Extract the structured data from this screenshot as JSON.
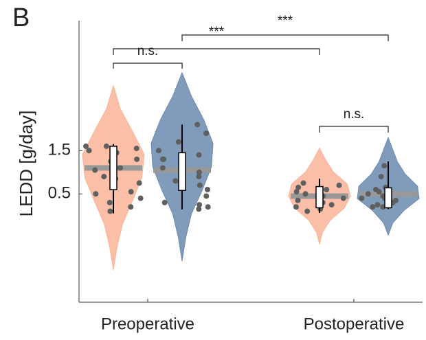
{
  "panel_label": "B",
  "chart_data": {
    "type": "violin",
    "y_label": "LEDD [g/day]",
    "categories": [
      "Preoperative",
      "Postoperative"
    ],
    "ylim": [
      -2,
      4.5
    ],
    "yticks": [
      0.5,
      1.5
    ],
    "series": [
      {
        "color": "#f9b496",
        "violins": [
          {
            "min": -1.25,
            "max": 3.0,
            "density": [
              0,
              0.12,
              0.3,
              0.62,
              0.92,
              1.0,
              0.62,
              0.22,
              0
            ],
            "mean": 1.1,
            "q1": 0.6,
            "q3": 1.6,
            "whisker_low": 0.05,
            "whisker_high": 1.65,
            "points": [
              1.6,
              1.55,
              1.5,
              1.45,
              1.6,
              1.25,
              1.1,
              1.05,
              0.9,
              0.85,
              0.75,
              0.55,
              0.5,
              0.4,
              0.2,
              0.1,
              1.3,
              0.3
            ]
          },
          {
            "min": -0.66,
            "max": 1.56,
            "density": [
              0,
              0.1,
              0.35,
              0.8,
              1.0,
              0.9,
              0.45,
              0.2,
              0
            ],
            "mean": 0.45,
            "q1": 0.18,
            "q3": 0.67,
            "whisker_low": 0.06,
            "whisker_high": 0.85,
            "points": [
              0.75,
              0.7,
              0.65,
              0.6,
              0.55,
              0.5,
              0.4,
              0.35,
              0.3,
              0.25,
              0.2,
              0.15,
              0.1,
              0.45
            ]
          }
        ]
      },
      {
        "color": "#6b8aaf",
        "violins": [
          {
            "min": -1.05,
            "max": 3.3,
            "density": [
              0,
              0.12,
              0.3,
              0.65,
              0.95,
              1.0,
              0.7,
              0.3,
              0
            ],
            "mean": 1.05,
            "q1": 0.58,
            "q3": 1.45,
            "whisker_low": 0.14,
            "whisker_high": 2.1,
            "points": [
              2.1,
              1.9,
              1.7,
              1.5,
              1.4,
              1.3,
              1.3,
              1.1,
              1.0,
              0.9,
              0.8,
              0.7,
              0.6,
              0.45,
              0.3,
              0.25,
              0.2,
              0.15
            ]
          },
          {
            "min": -0.45,
            "max": 1.8,
            "density": [
              0,
              0.15,
              0.5,
              1.0,
              0.95,
              0.55,
              0.3,
              0.15,
              0
            ],
            "mean": 0.5,
            "q1": 0.18,
            "q3": 0.64,
            "whisker_low": 0.15,
            "whisker_high": 1.25,
            "points": [
              1.15,
              0.9,
              0.65,
              0.6,
              0.55,
              0.5,
              0.45,
              0.4,
              0.35,
              0.3,
              0.25,
              0.2,
              0.2,
              0.4
            ]
          }
        ]
      }
    ],
    "annotations": [
      "n.s.",
      "***",
      "***",
      "n.s."
    ]
  }
}
